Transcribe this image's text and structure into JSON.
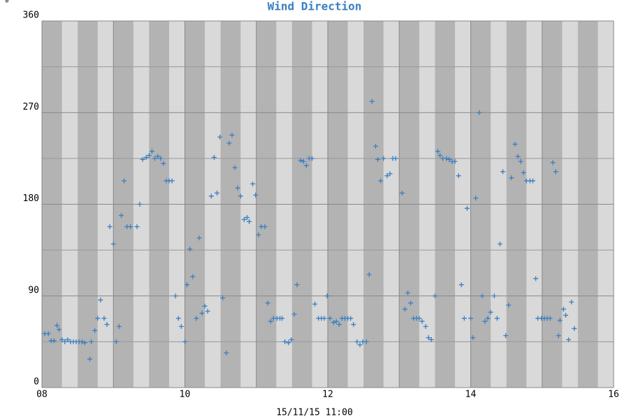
{
  "chart_data": {
    "type": "scatter",
    "title": "Wind Direction",
    "y_label": "°",
    "x_label": "15/11/15 11:00",
    "color": "#3a7fc1",
    "grid": true,
    "xlim": [
      8,
      16
    ],
    "xticks": [
      {
        "value": 8,
        "label": "08"
      },
      10,
      12,
      14,
      16
    ],
    "xgrid_minor": [
      9,
      11,
      13,
      15
    ],
    "ylim": [
      0,
      360
    ],
    "yticks": [
      0,
      90,
      180,
      270,
      360
    ],
    "ygrid_minor": [
      45,
      135,
      225,
      315
    ],
    "x": [
      8.04,
      8.09,
      8.13,
      8.17,
      8.21,
      8.24,
      8.28,
      8.32,
      8.36,
      8.4,
      8.44,
      8.48,
      8.52,
      8.56,
      8.6,
      8.67,
      8.69,
      8.74,
      8.78,
      8.82,
      8.87,
      8.91,
      8.95,
      9.0,
      9.04,
      9.08,
      9.11,
      9.15,
      9.19,
      9.24,
      9.33,
      9.37,
      9.41,
      9.46,
      9.5,
      9.54,
      9.58,
      9.62,
      9.66,
      9.7,
      9.74,
      9.78,
      9.82,
      9.87,
      9.91,
      9.95,
      10.0,
      10.03,
      10.07,
      10.11,
      10.16,
      10.2,
      10.24,
      10.28,
      10.32,
      10.37,
      10.41,
      10.45,
      10.49,
      10.53,
      10.58,
      10.62,
      10.66,
      10.7,
      10.74,
      10.78,
      10.83,
      10.87,
      10.9,
      10.95,
      10.99,
      11.03,
      11.07,
      11.12,
      11.16,
      11.2,
      11.24,
      11.29,
      11.33,
      11.36,
      11.4,
      11.45,
      11.49,
      11.53,
      11.57,
      11.62,
      11.66,
      11.7,
      11.74,
      11.78,
      11.82,
      11.87,
      11.91,
      11.95,
      11.99,
      12.03,
      12.08,
      12.12,
      12.16,
      12.2,
      12.24,
      12.28,
      12.32,
      12.36,
      12.41,
      12.45,
      12.49,
      12.54,
      12.58,
      12.62,
      12.67,
      12.7,
      12.74,
      12.78,
      12.83,
      12.87,
      12.91,
      12.95,
      13.04,
      13.08,
      13.12,
      13.16,
      13.2,
      13.24,
      13.28,
      13.32,
      13.37,
      13.41,
      13.45,
      13.5,
      13.54,
      13.57,
      13.61,
      13.66,
      13.7,
      13.74,
      13.78,
      13.83,
      13.87,
      13.91,
      13.95,
      14.0,
      14.03,
      14.07,
      14.12,
      14.16,
      14.2,
      14.24,
      14.28,
      14.33,
      14.37,
      14.41,
      14.45,
      14.49,
      14.53,
      14.57,
      14.62,
      14.66,
      14.7,
      14.74,
      14.78,
      14.83,
      14.87,
      14.91,
      14.94,
      14.99,
      15.03,
      15.07,
      15.11,
      15.15,
      15.19,
      15.23,
      15.25,
      15.3,
      15.33,
      15.37,
      15.41,
      15.45
    ],
    "values": [
      53,
      53,
      46,
      46,
      61,
      57,
      47,
      45,
      47,
      45,
      45,
      45,
      45,
      45,
      44,
      28,
      45,
      56,
      68,
      86,
      68,
      62,
      158,
      141,
      45,
      60,
      169,
      203,
      158,
      158,
      158,
      180,
      224,
      226,
      228,
      232,
      225,
      227,
      225,
      220,
      203,
      203,
      203,
      90,
      68,
      60,
      45,
      101,
      136,
      109,
      68,
      147,
      73,
      80,
      75,
      188,
      226,
      191,
      246,
      88,
      34,
      240,
      248,
      216,
      196,
      188,
      165,
      167,
      163,
      200,
      189,
      150,
      158,
      158,
      83,
      65,
      68,
      68,
      68,
      68,
      45,
      44,
      47,
      72,
      101,
      223,
      222,
      218,
      225,
      225,
      82,
      68,
      68,
      68,
      90,
      68,
      64,
      65,
      62,
      68,
      68,
      68,
      68,
      62,
      45,
      42,
      45,
      45,
      111,
      281,
      237,
      224,
      203,
      225,
      208,
      210,
      225,
      225,
      191,
      77,
      93,
      83,
      68,
      68,
      68,
      65,
      60,
      49,
      47,
      90,
      232,
      228,
      225,
      225,
      224,
      222,
      222,
      208,
      101,
      68,
      176,
      68,
      49,
      186,
      270,
      90,
      65,
      68,
      74,
      90,
      68,
      141,
      212,
      51,
      81,
      206,
      239,
      227,
      222,
      211,
      203,
      203,
      203,
      107,
      68,
      68,
      68,
      68,
      68,
      221,
      212,
      51,
      66,
      77,
      71,
      47,
      84,
      58
    ]
  }
}
